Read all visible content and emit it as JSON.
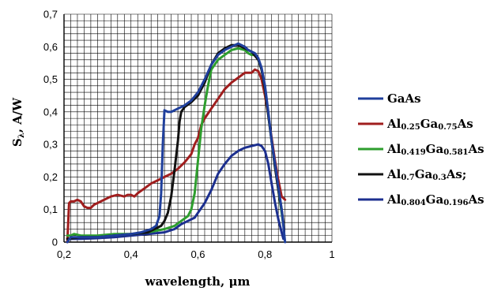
{
  "chart_data": {
    "type": "line",
    "xlabel": "wavelength, μm",
    "ylabel": "S",
    "ylabel_sub": "λ",
    "ylabel_unit": ", A/W",
    "xlim": [
      0.2,
      1.0
    ],
    "ylim": [
      0,
      0.7
    ],
    "x_ticks": [
      0.2,
      0.4,
      0.6,
      0.8,
      1.0
    ],
    "x_tick_labels": [
      "0,2",
      "0,4",
      "0,6",
      "0,8",
      "1"
    ],
    "y_ticks": [
      0,
      0.1,
      0.2,
      0.3,
      0.4,
      0.5,
      0.6,
      0.7
    ],
    "y_tick_labels": [
      "0",
      "0,1",
      "0,2",
      "0,3",
      "0,4",
      "0,5",
      "0,6",
      "0,7"
    ],
    "grid": true,
    "legend_position": "right",
    "series": [
      {
        "name": "GaAs",
        "legend_parts": [
          {
            "text": "GaAs",
            "sub": false
          }
        ],
        "color": "#1f3f9c",
        "points": [
          [
            0.21,
            0.0
          ],
          [
            0.22,
            0.015
          ],
          [
            0.25,
            0.015
          ],
          [
            0.3,
            0.015
          ],
          [
            0.35,
            0.02
          ],
          [
            0.4,
            0.025
          ],
          [
            0.43,
            0.03
          ],
          [
            0.46,
            0.04
          ],
          [
            0.475,
            0.05
          ],
          [
            0.485,
            0.08
          ],
          [
            0.49,
            0.15
          ],
          [
            0.495,
            0.3
          ],
          [
            0.5,
            0.405
          ],
          [
            0.51,
            0.4
          ],
          [
            0.52,
            0.4
          ],
          [
            0.53,
            0.405
          ],
          [
            0.54,
            0.41
          ],
          [
            0.56,
            0.42
          ],
          [
            0.58,
            0.435
          ],
          [
            0.6,
            0.46
          ],
          [
            0.62,
            0.5
          ],
          [
            0.64,
            0.545
          ],
          [
            0.66,
            0.575
          ],
          [
            0.68,
            0.59
          ],
          [
            0.7,
            0.6
          ],
          [
            0.72,
            0.61
          ],
          [
            0.74,
            0.6
          ],
          [
            0.75,
            0.59
          ],
          [
            0.76,
            0.585
          ],
          [
            0.77,
            0.58
          ],
          [
            0.78,
            0.565
          ],
          [
            0.79,
            0.535
          ],
          [
            0.8,
            0.48
          ],
          [
            0.81,
            0.4
          ],
          [
            0.82,
            0.31
          ],
          [
            0.83,
            0.24
          ],
          [
            0.84,
            0.17
          ],
          [
            0.85,
            0.1
          ],
          [
            0.855,
            0.05
          ],
          [
            0.86,
            0.0
          ]
        ]
      },
      {
        "name": "Al0.25Ga0.75As",
        "legend_parts": [
          {
            "text": "Al",
            "sub": false
          },
          {
            "text": "0.25",
            "sub": true
          },
          {
            "text": "Ga",
            "sub": false
          },
          {
            "text": "0.75",
            "sub": true
          },
          {
            "text": "As",
            "sub": false
          }
        ],
        "color": "#a01e1e",
        "points": [
          [
            0.21,
            0.0
          ],
          [
            0.215,
            0.12
          ],
          [
            0.22,
            0.125
          ],
          [
            0.23,
            0.125
          ],
          [
            0.24,
            0.13
          ],
          [
            0.25,
            0.125
          ],
          [
            0.26,
            0.11
          ],
          [
            0.27,
            0.105
          ],
          [
            0.28,
            0.105
          ],
          [
            0.29,
            0.115
          ],
          [
            0.3,
            0.12
          ],
          [
            0.32,
            0.13
          ],
          [
            0.34,
            0.14
          ],
          [
            0.36,
            0.145
          ],
          [
            0.38,
            0.14
          ],
          [
            0.39,
            0.145
          ],
          [
            0.4,
            0.145
          ],
          [
            0.41,
            0.14
          ],
          [
            0.42,
            0.15
          ],
          [
            0.44,
            0.165
          ],
          [
            0.46,
            0.18
          ],
          [
            0.48,
            0.19
          ],
          [
            0.5,
            0.2
          ],
          [
            0.52,
            0.21
          ],
          [
            0.54,
            0.225
          ],
          [
            0.56,
            0.245
          ],
          [
            0.58,
            0.27
          ],
          [
            0.59,
            0.3
          ],
          [
            0.6,
            0.32
          ],
          [
            0.61,
            0.36
          ],
          [
            0.62,
            0.38
          ],
          [
            0.64,
            0.41
          ],
          [
            0.66,
            0.44
          ],
          [
            0.68,
            0.47
          ],
          [
            0.7,
            0.49
          ],
          [
            0.72,
            0.505
          ],
          [
            0.74,
            0.52
          ],
          [
            0.76,
            0.52
          ],
          [
            0.77,
            0.53
          ],
          [
            0.78,
            0.525
          ],
          [
            0.79,
            0.5
          ],
          [
            0.8,
            0.45
          ],
          [
            0.81,
            0.39
          ],
          [
            0.82,
            0.32
          ],
          [
            0.83,
            0.25
          ],
          [
            0.84,
            0.19
          ],
          [
            0.85,
            0.14
          ],
          [
            0.86,
            0.13
          ]
        ]
      },
      {
        "name": "Al0.419Ga0.581As",
        "legend_parts": [
          {
            "text": "Al",
            "sub": false
          },
          {
            "text": "0.419",
            "sub": true
          },
          {
            "text": "Ga",
            "sub": false
          },
          {
            "text": "0.581",
            "sub": true
          },
          {
            "text": "As",
            "sub": false
          }
        ],
        "color": "#2e9e2e",
        "points": [
          [
            0.21,
            0.02
          ],
          [
            0.22,
            0.02
          ],
          [
            0.23,
            0.025
          ],
          [
            0.25,
            0.02
          ],
          [
            0.3,
            0.02
          ],
          [
            0.35,
            0.025
          ],
          [
            0.4,
            0.025
          ],
          [
            0.45,
            0.03
          ],
          [
            0.5,
            0.04
          ],
          [
            0.53,
            0.05
          ],
          [
            0.55,
            0.065
          ],
          [
            0.57,
            0.08
          ],
          [
            0.58,
            0.1
          ],
          [
            0.59,
            0.15
          ],
          [
            0.6,
            0.25
          ],
          [
            0.61,
            0.35
          ],
          [
            0.62,
            0.42
          ],
          [
            0.63,
            0.48
          ],
          [
            0.64,
            0.53
          ],
          [
            0.66,
            0.56
          ],
          [
            0.68,
            0.575
          ],
          [
            0.7,
            0.59
          ],
          [
            0.72,
            0.595
          ],
          [
            0.74,
            0.59
          ],
          [
            0.75,
            0.58
          ],
          [
            0.76,
            0.575
          ],
          [
            0.77,
            0.575
          ],
          [
            0.78,
            0.56
          ],
          [
            0.79,
            0.53
          ],
          [
            0.8,
            0.47
          ],
          [
            0.81,
            0.39
          ],
          [
            0.82,
            0.31
          ],
          [
            0.83,
            0.23
          ],
          [
            0.84,
            0.16
          ],
          [
            0.85,
            0.09
          ],
          [
            0.855,
            0.05
          ]
        ]
      },
      {
        "name": "Al0.7Ga0.3As;",
        "legend_parts": [
          {
            "text": "Al",
            "sub": false
          },
          {
            "text": "0.7",
            "sub": true
          },
          {
            "text": "Ga",
            "sub": false
          },
          {
            "text": "0.3",
            "sub": true
          },
          {
            "text": "As;",
            "sub": false
          }
        ],
        "color": "#111111",
        "points": [
          [
            0.21,
            0.01
          ],
          [
            0.25,
            0.015
          ],
          [
            0.3,
            0.015
          ],
          [
            0.35,
            0.02
          ],
          [
            0.4,
            0.025
          ],
          [
            0.45,
            0.03
          ],
          [
            0.47,
            0.04
          ],
          [
            0.49,
            0.05
          ],
          [
            0.5,
            0.065
          ],
          [
            0.51,
            0.09
          ],
          [
            0.52,
            0.14
          ],
          [
            0.53,
            0.22
          ],
          [
            0.54,
            0.31
          ],
          [
            0.545,
            0.37
          ],
          [
            0.55,
            0.4
          ],
          [
            0.56,
            0.415
          ],
          [
            0.58,
            0.43
          ],
          [
            0.6,
            0.45
          ],
          [
            0.62,
            0.49
          ],
          [
            0.64,
            0.545
          ],
          [
            0.66,
            0.58
          ],
          [
            0.68,
            0.595
          ],
          [
            0.7,
            0.605
          ],
          [
            0.72,
            0.605
          ],
          [
            0.74,
            0.595
          ],
          [
            0.76,
            0.585
          ],
          [
            0.78,
            0.56
          ],
          [
            0.79,
            0.53
          ],
          [
            0.8,
            0.47
          ],
          [
            0.81,
            0.39
          ],
          [
            0.82,
            0.31
          ],
          [
            0.83,
            0.23
          ],
          [
            0.84,
            0.16
          ],
          [
            0.85,
            0.1
          ],
          [
            0.855,
            0.06
          ]
        ]
      },
      {
        "name": "Al0.804Ga0.196As",
        "legend_parts": [
          {
            "text": "Al",
            "sub": false
          },
          {
            "text": "0.804",
            "sub": true
          },
          {
            "text": "Ga",
            "sub": false
          },
          {
            "text": "0.196",
            "sub": true
          },
          {
            "text": "As",
            "sub": false
          }
        ],
        "color": "#1c2f8f",
        "points": [
          [
            0.21,
            0.01
          ],
          [
            0.25,
            0.01
          ],
          [
            0.3,
            0.012
          ],
          [
            0.35,
            0.015
          ],
          [
            0.4,
            0.02
          ],
          [
            0.45,
            0.025
          ],
          [
            0.5,
            0.03
          ],
          [
            0.53,
            0.04
          ],
          [
            0.55,
            0.055
          ],
          [
            0.57,
            0.065
          ],
          [
            0.59,
            0.075
          ],
          [
            0.6,
            0.09
          ],
          [
            0.62,
            0.12
          ],
          [
            0.64,
            0.16
          ],
          [
            0.66,
            0.21
          ],
          [
            0.68,
            0.24
          ],
          [
            0.7,
            0.265
          ],
          [
            0.72,
            0.28
          ],
          [
            0.74,
            0.29
          ],
          [
            0.76,
            0.295
          ],
          [
            0.78,
            0.3
          ],
          [
            0.79,
            0.295
          ],
          [
            0.8,
            0.28
          ],
          [
            0.81,
            0.24
          ],
          [
            0.82,
            0.18
          ],
          [
            0.83,
            0.12
          ],
          [
            0.84,
            0.07
          ],
          [
            0.85,
            0.03
          ],
          [
            0.855,
            0.01
          ]
        ]
      }
    ]
  }
}
